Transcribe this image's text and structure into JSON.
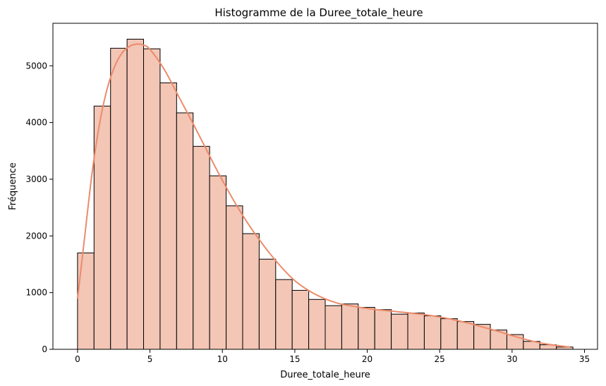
{
  "chart_data": {
    "type": "bar",
    "title": "Histogramme de la Duree_totale_heure",
    "xlabel": "Duree_totale_heure",
    "ylabel": "Fréquence",
    "xlim": [
      -1.7,
      35.9
    ],
    "ylim": [
      0,
      5750
    ],
    "xticks": [
      0,
      5,
      10,
      15,
      20,
      25,
      30,
      35
    ],
    "yticks": [
      0,
      1000,
      2000,
      3000,
      4000,
      5000
    ],
    "bin_start": 0,
    "bin_width": 1.14,
    "values": [
      1700,
      4290,
      5310,
      5470,
      5300,
      4700,
      4170,
      3580,
      3060,
      2530,
      2040,
      1590,
      1230,
      1040,
      880,
      770,
      800,
      740,
      700,
      620,
      640,
      590,
      540,
      490,
      440,
      340,
      260,
      140,
      80,
      40
    ],
    "kde": {
      "x": [
        0,
        0.5,
        1,
        1.5,
        2,
        2.5,
        3,
        3.5,
        4,
        4.5,
        5,
        6,
        7,
        8,
        9,
        10,
        11,
        12,
        13,
        14,
        15,
        16,
        17,
        18,
        19,
        20,
        21,
        22,
        23,
        24,
        25,
        26,
        27,
        28,
        29,
        30,
        31,
        32,
        33,
        34
      ],
      "y": [
        890,
        2000,
        3100,
        3950,
        4550,
        4950,
        5200,
        5330,
        5380,
        5370,
        5290,
        4930,
        4450,
        3970,
        3470,
        2980,
        2530,
        2130,
        1780,
        1470,
        1210,
        1030,
        900,
        810,
        760,
        720,
        690,
        665,
        640,
        610,
        570,
        520,
        460,
        390,
        320,
        240,
        170,
        110,
        70,
        40
      ]
    },
    "colors": {
      "bar_fill": "#f3c6b6",
      "bar_edge": "#000000",
      "kde_line": "#ec8b6a"
    },
    "grid": false,
    "legend": "none"
  }
}
